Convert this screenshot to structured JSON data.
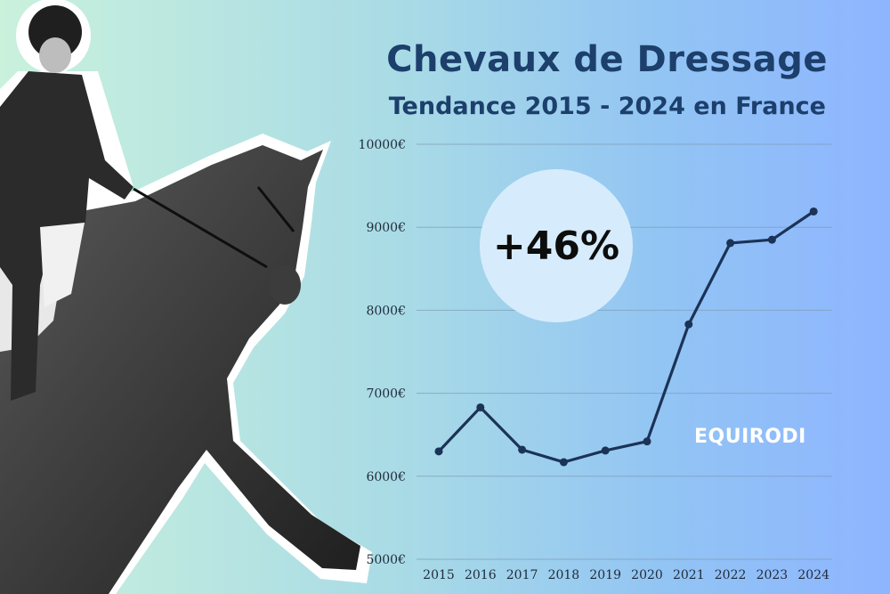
{
  "title": "Chevaux de Dressage",
  "subtitle": "Tendance 2015 - 2024 en France",
  "badge_text": "+46%",
  "watermark": "EQUIRODI",
  "colors": {
    "title": "#1c3f6b",
    "line": "#1b3356",
    "badge_bg": "#d6ecfc",
    "gridline": "#7f9ab3"
  },
  "chart_data": {
    "type": "line",
    "x": [
      "2015",
      "2016",
      "2017",
      "2018",
      "2019",
      "2020",
      "2021",
      "2022",
      "2023",
      "2024"
    ],
    "values": [
      6300,
      6830,
      6320,
      6170,
      6310,
      6420,
      7830,
      8810,
      8850,
      9190
    ],
    "ylim": [
      5000,
      10000
    ],
    "yticks": [
      5000,
      6000,
      7000,
      8000,
      9000,
      10000
    ],
    "ytick_labels": [
      "5000€",
      "6000€",
      "7000€",
      "8000€",
      "9000€",
      "10000€"
    ],
    "grid": true
  }
}
